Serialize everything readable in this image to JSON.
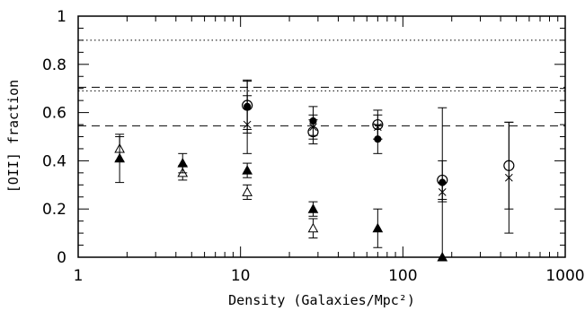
{
  "chart_data": {
    "type": "scatter",
    "xlabel": "Density (Galaxies/Mpc²)",
    "ylabel": "[OII] fraction",
    "xscale": "log",
    "xlim": [
      1,
      1000
    ],
    "ylim": [
      0,
      1
    ],
    "x_tick_labels": [
      "1",
      "10",
      "100",
      "1000"
    ],
    "y_tick_labels": [
      "0",
      "0.2",
      "0.4",
      "0.6",
      "0.8",
      "1"
    ],
    "grid": false,
    "reference_lines": [
      {
        "style": "dotted",
        "y": 0.9
      },
      {
        "style": "dotted",
        "y": 0.69
      },
      {
        "style": "dashed",
        "y": 0.705
      },
      {
        "style": "dashed",
        "y": 0.545
      }
    ],
    "series": [
      {
        "marker": "open-triangle",
        "points": [
          {
            "x": 1.8,
            "y": 0.45,
            "err": 0.05
          },
          {
            "x": 4.4,
            "y": 0.35,
            "err": 0.03
          },
          {
            "x": 11,
            "y": 0.27,
            "err": 0.03
          },
          {
            "x": 28,
            "y": 0.12,
            "err": 0.04
          }
        ]
      },
      {
        "marker": "filled-triangle",
        "points": [
          {
            "x": 1.8,
            "y": 0.41,
            "err": 0.1
          },
          {
            "x": 4.4,
            "y": 0.39,
            "err": 0.04
          },
          {
            "x": 11,
            "y": 0.36,
            "err": 0.03
          },
          {
            "x": 28,
            "y": 0.2,
            "err": 0.03
          },
          {
            "x": 70,
            "y": 0.12,
            "err": 0.08
          },
          {
            "x": 175,
            "y": 0.0,
            "err": 0.0
          }
        ]
      },
      {
        "marker": "open-circle",
        "points": [
          {
            "x": 11,
            "y": 0.63,
            "err": 0.1
          },
          {
            "x": 28,
            "y": 0.52,
            "err": 0.05
          },
          {
            "x": 70,
            "y": 0.55,
            "err": 0.06
          },
          {
            "x": 175,
            "y": 0.32,
            "err": 0.08
          },
          {
            "x": 450,
            "y": 0.38,
            "err": 0.18
          }
        ]
      },
      {
        "marker": "filled-circle",
        "points": [
          {
            "x": 11,
            "y": 0.625,
            "err": 0.11
          },
          {
            "x": 28,
            "y": 0.565,
            "err": 0.06
          },
          {
            "x": 70,
            "y": 0.49,
            "err": 0.06
          },
          {
            "x": 175,
            "y": 0.31,
            "err": 0.31
          }
        ]
      },
      {
        "marker": "cross",
        "points": [
          {
            "x": 11,
            "y": 0.55,
            "err": 0.12
          },
          {
            "x": 28,
            "y": 0.54,
            "err": 0.05
          },
          {
            "x": 70,
            "y": 0.54,
            "err": 0.05
          },
          {
            "x": 175,
            "y": 0.27,
            "err": 0.04
          },
          {
            "x": 450,
            "y": 0.33,
            "err": 0.23
          }
        ]
      }
    ]
  }
}
